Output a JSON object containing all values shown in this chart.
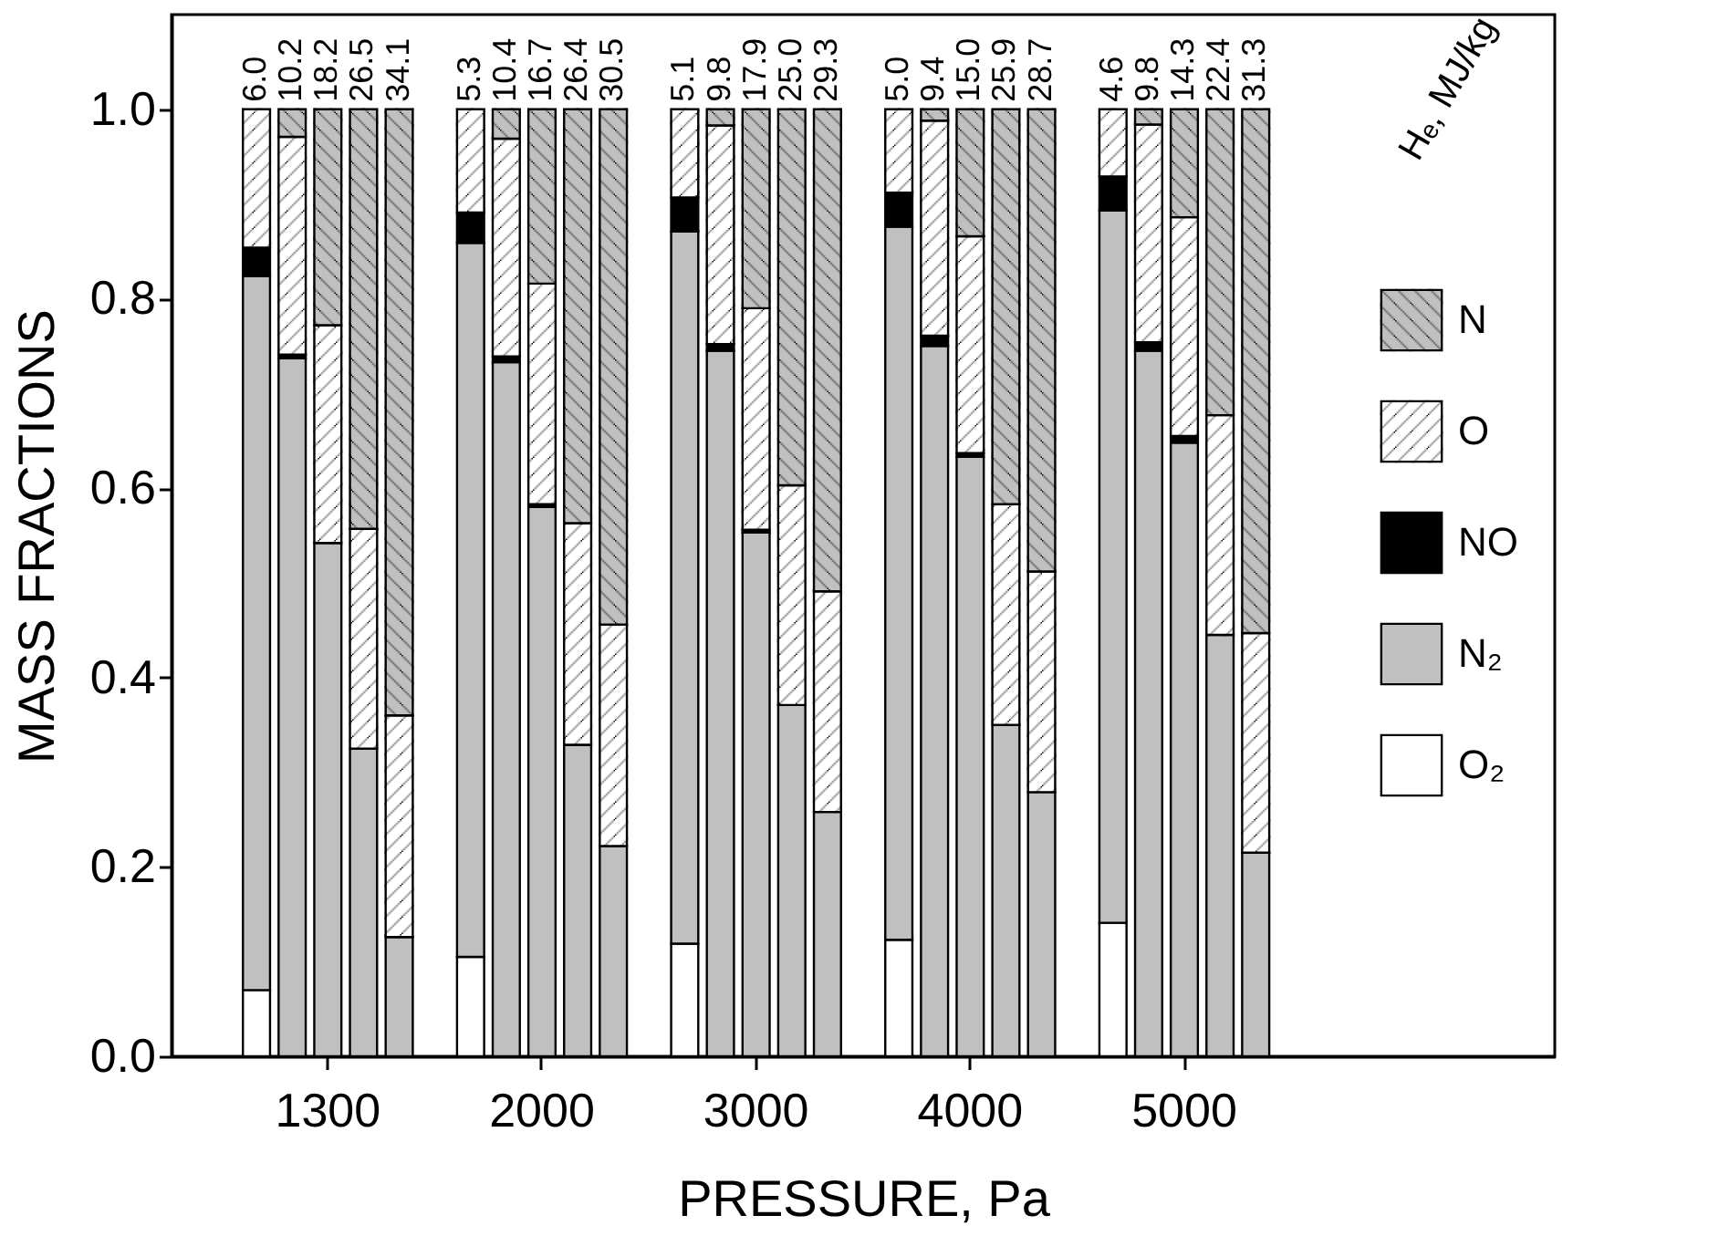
{
  "chart_data": {
    "type": "bar",
    "stacked": true,
    "xlabel": "PRESSURE, Pa",
    "ylabel": "MASS FRACTIONS",
    "categories": [
      null,
      null,
      null,
      null,
      "1300",
      null,
      null,
      null,
      null,
      null,
      "2000",
      null,
      null,
      null,
      null,
      null,
      "3000",
      null,
      null,
      null,
      null,
      null,
      "4000",
      null,
      null,
      null,
      null,
      null,
      "5000",
      null,
      null,
      null,
      null,
      null,
      null,
      null,
      null,
      null,
      null
    ],
    "series": [
      {
        "name": "O₂",
        "color": "#ffffff",
        "values": [
          null,
          null,
          0.07,
          0,
          0,
          0,
          0,
          null,
          0.105,
          0,
          0,
          0,
          0,
          null,
          0.119,
          0,
          0,
          0,
          0,
          null,
          0.123,
          0,
          0,
          0,
          0,
          null,
          0.141,
          0,
          0,
          0,
          0,
          null,
          null,
          null,
          null,
          null,
          null,
          null,
          null
        ]
      },
      {
        "name": "N₂",
        "color": "#c0c0c0",
        "values": [
          null,
          null,
          0.754,
          0.737,
          0.542,
          0.325,
          0.126,
          null,
          0.754,
          0.733,
          0.58,
          0.329,
          0.222,
          null,
          0.752,
          0.745,
          0.553,
          0.371,
          0.258,
          null,
          0.753,
          0.75,
          0.633,
          0.35,
          0.279,
          null,
          0.752,
          0.745,
          0.648,
          0.445,
          0.215,
          null,
          null,
          null,
          null,
          null,
          null,
          null,
          null
        ]
      },
      {
        "name": "NO",
        "color": "#000000",
        "values": [
          null,
          null,
          0.03,
          0.004,
          0,
          0,
          0,
          null,
          0.032,
          0.006,
          0.003,
          0,
          0,
          null,
          0.036,
          0.007,
          0.003,
          0,
          0,
          null,
          0.036,
          0.011,
          0.004,
          0,
          0,
          null,
          0.036,
          0.009,
          0.007,
          0,
          0,
          null,
          null,
          null,
          null,
          null,
          null,
          null,
          null
        ]
      },
      {
        "name": "O",
        "color": "#ffffff",
        "values": [
          null,
          null,
          0.146,
          0.23,
          0.23,
          0.232,
          0.234,
          null,
          0.109,
          0.23,
          0.233,
          0.234,
          0.234,
          null,
          0.093,
          0.231,
          0.234,
          0.232,
          0.233,
          null,
          0.088,
          0.227,
          0.229,
          0.233,
          0.233,
          null,
          0.071,
          0.23,
          0.231,
          0.232,
          0.232,
          null,
          null,
          null,
          null,
          null,
          null,
          null,
          null
        ]
      },
      {
        "name": "N",
        "color": "#c0c0c0",
        "values": [
          null,
          null,
          0,
          0.029,
          0.228,
          0.443,
          0.64,
          null,
          0,
          0.031,
          0.184,
          0.437,
          0.544,
          null,
          0,
          0.017,
          0.21,
          0.397,
          0.509,
          null,
          0,
          0.012,
          0.134,
          0.417,
          0.488,
          null,
          0,
          0.016,
          0.114,
          0.323,
          0.553,
          null,
          null,
          null,
          null,
          null,
          null,
          null,
          null
        ]
      }
    ],
    "ylim": [
      0,
      1.1
    ],
    "yticks": [
      {
        "value": 0,
        "label": "0.0"
      },
      0.2,
      0.4,
      0.6,
      0.8,
      {
        "value": 1,
        "label": "1.0"
      }
    ],
    "legend": "right",
    "annotations": [
      "6.0",
      "10.2",
      "18.2",
      "26.5",
      "34.1",
      "5.3",
      "10.4",
      "16.7",
      "26.4",
      "30.5",
      "5.1",
      "9.8",
      "17.9",
      "25.0",
      "29.3",
      "5.0",
      "9.4",
      "15.0",
      "25.9",
      "28.7",
      "4.6",
      "9.8",
      "14.3",
      "22.4",
      "31.3",
      "Hₑ, MJ/kg"
    ]
  }
}
